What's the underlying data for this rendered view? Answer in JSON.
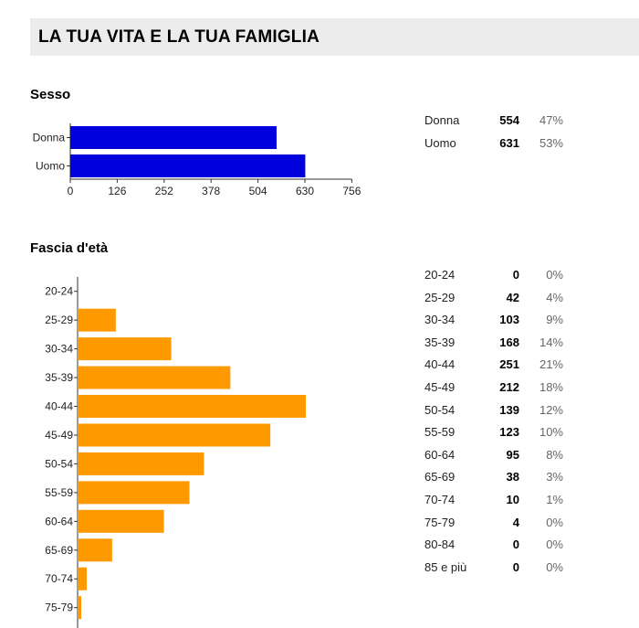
{
  "page": {
    "title": "LA TUA VITA E LA TUA FAMIGLIA"
  },
  "colors": {
    "sex_bar": "#0000dd",
    "age_bar": "#ff9900",
    "header_bg": "#ececec"
  },
  "sections": {
    "sex": {
      "title": "Sesso",
      "table": [
        {
          "label": "Donna",
          "count": "554",
          "pct": "47%"
        },
        {
          "label": "Uomo",
          "count": "631",
          "pct": "53%"
        }
      ]
    },
    "age": {
      "title": "Fascia d'età",
      "table": [
        {
          "label": "20-24",
          "count": "0",
          "pct": "0%"
        },
        {
          "label": "25-29",
          "count": "42",
          "pct": "4%"
        },
        {
          "label": "30-34",
          "count": "103",
          "pct": "9%"
        },
        {
          "label": "35-39",
          "count": "168",
          "pct": "14%"
        },
        {
          "label": "40-44",
          "count": "251",
          "pct": "21%"
        },
        {
          "label": "45-49",
          "count": "212",
          "pct": "18%"
        },
        {
          "label": "50-54",
          "count": "139",
          "pct": "12%"
        },
        {
          "label": "55-59",
          "count": "123",
          "pct": "10%"
        },
        {
          "label": "60-64",
          "count": "95",
          "pct": "8%"
        },
        {
          "label": "65-69",
          "count": "38",
          "pct": "3%"
        },
        {
          "label": "70-74",
          "count": "10",
          "pct": "1%"
        },
        {
          "label": "75-79",
          "count": "4",
          "pct": "0%"
        },
        {
          "label": "80-84",
          "count": "0",
          "pct": "0%"
        },
        {
          "label": "85 e più",
          "count": "0",
          "pct": "0%"
        }
      ]
    }
  },
  "chart_data": [
    {
      "type": "bar",
      "orientation": "horizontal",
      "categories": [
        "Donna",
        "Uomo"
      ],
      "values": [
        554,
        631
      ],
      "xticks": [
        "0",
        "126",
        "252",
        "378",
        "504",
        "630",
        "756"
      ],
      "xlim": [
        0,
        756
      ],
      "grid": false
    },
    {
      "type": "bar",
      "orientation": "horizontal",
      "categories": [
        "20-24",
        "25-29",
        "30-34",
        "35-39",
        "40-44",
        "45-49",
        "50-54",
        "55-59",
        "60-64",
        "65-69",
        "70-74",
        "75-79"
      ],
      "values": [
        0,
        42,
        103,
        168,
        251,
        212,
        139,
        123,
        95,
        38,
        10,
        4
      ],
      "xlim": [
        0,
        300
      ],
      "grid": false
    }
  ]
}
